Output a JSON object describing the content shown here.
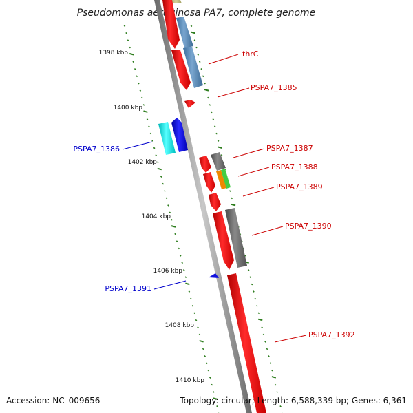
{
  "title": "Pseudomonas aeruginosa PA7, complete genome",
  "footer": {
    "accession": "Accession: NC_009656",
    "summary": "Topology: circular; Length: 6,588,339 bp; Genes: 6,361"
  },
  "colors": {
    "backbone": "#8a8a8a",
    "tick": "#2e7d1e",
    "forward_label": "#cc0000",
    "reverse_label": "#0000cc"
  },
  "kbp_labels": [
    "1398 kbp",
    "1400 kbp",
    "1402 kbp",
    "1404 kbp",
    "1406 kbp",
    "1408 kbp",
    "1410 kbp"
  ],
  "gene_labels": [
    {
      "text": "thrC",
      "strand": "forward"
    },
    {
      "text": "PSPA7_1385",
      "strand": "forward"
    },
    {
      "text": "PSPA7_1386",
      "strand": "reverse"
    },
    {
      "text": "PSPA7_1387",
      "strand": "forward"
    },
    {
      "text": "PSPA7_1388",
      "strand": "forward"
    },
    {
      "text": "PSPA7_1389",
      "strand": "forward"
    },
    {
      "text": "PSPA7_1390",
      "strand": "forward"
    },
    {
      "text": "PSPA7_1391",
      "strand": "reverse"
    },
    {
      "text": "PSPA7_1392",
      "strand": "forward"
    }
  ]
}
